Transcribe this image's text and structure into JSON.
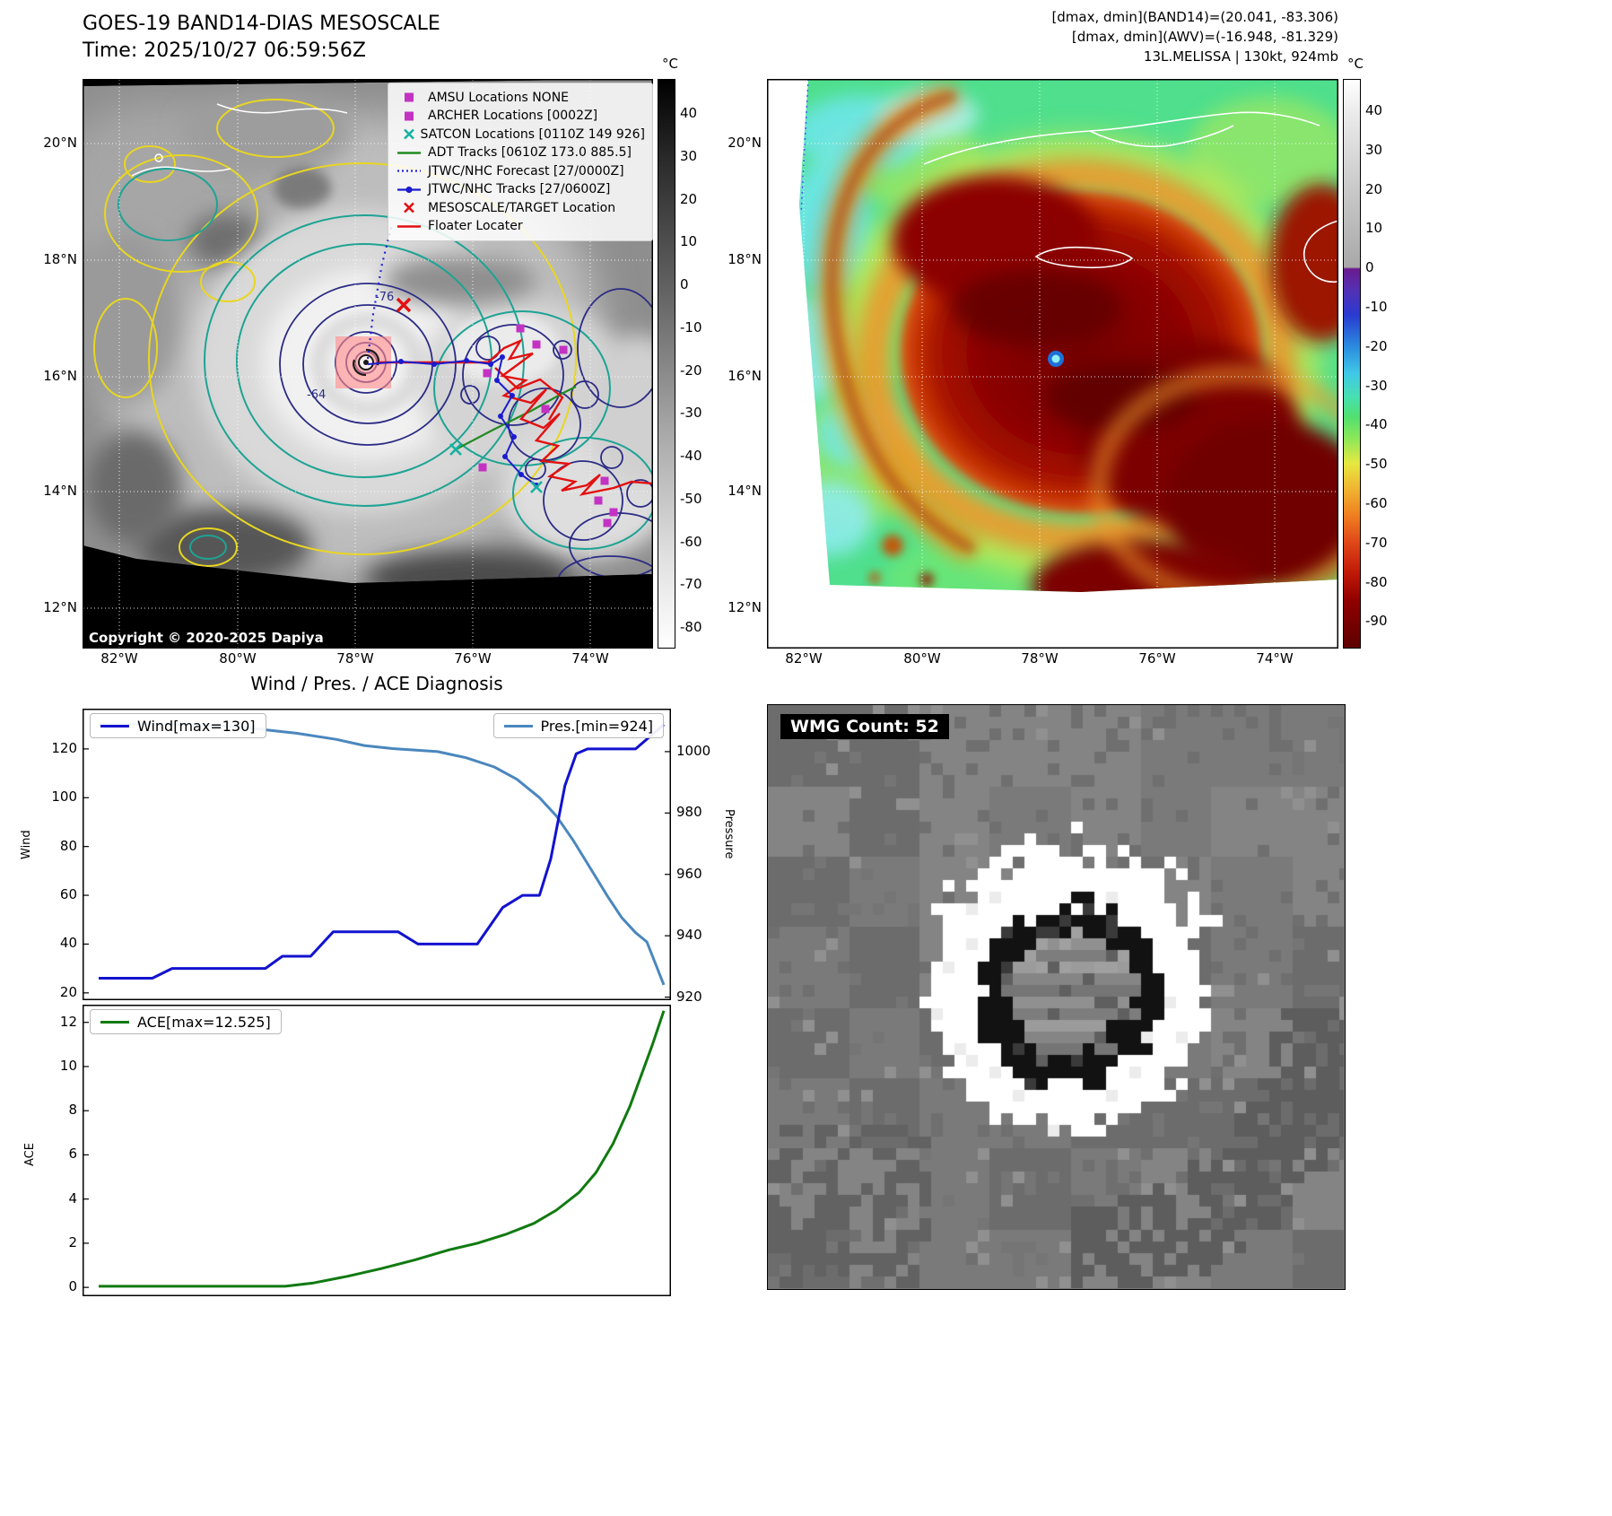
{
  "band14": {
    "title": "GOES-19 BAND14-DIAS MESOSCALE",
    "time_line": "Time: 2025/10/27 06:59:56Z",
    "copyright": "Copyright © 2020-2025 Dapiya",
    "contour_label_inner": "-76",
    "contour_label_outer": "-64",
    "legend_items": [
      {
        "label": "AMSU Locations NONE",
        "marker": "square",
        "color": "#c332c3"
      },
      {
        "label": "ARCHER Locations [0002Z]",
        "marker": "square",
        "color": "#c332c3"
      },
      {
        "label": "SATCON Locations [0110Z 149 926]",
        "marker": "x",
        "color": "#15b2a2"
      },
      {
        "label": "ADT Tracks [0610Z 173.0 885.5]",
        "marker": "line",
        "color": "#228b22"
      },
      {
        "label": "JTWC/NHC Forecast [27/0000Z]",
        "marker": "dotted-line",
        "color": "#2323d6"
      },
      {
        "label": "JTWC/NHC Tracks [27/0600Z]",
        "marker": "line-dot",
        "color": "#1b1bcf"
      },
      {
        "label": "MESOSCALE/TARGET Location",
        "marker": "x",
        "color": "#e31010"
      },
      {
        "label": "Floater Locater",
        "marker": "line",
        "color": "#e31010"
      }
    ],
    "colorbar": {
      "unit": "°C",
      "ticks": [
        "40",
        "30",
        "20",
        "10",
        "0",
        "-10",
        "-20",
        "-30",
        "-40",
        "-50",
        "-60",
        "-70",
        "-80"
      ]
    },
    "lat_ticks": [
      "20°N",
      "18°N",
      "16°N",
      "14°N",
      "12°N"
    ],
    "lon_ticks": [
      "82°W",
      "80°W",
      "78°W",
      "76°W",
      "74°W"
    ]
  },
  "awv": {
    "header_line1": "[dmax, dmin](BAND14)=(20.041, -83.306)",
    "header_line2": "[dmax, dmin](AWV)=(-16.948, -81.329)",
    "header_line3": "13L.MELISSA | 130kt, 924mb",
    "colorbar": {
      "unit": "°C",
      "ticks": [
        "40",
        "30",
        "20",
        "10",
        "0",
        "-10",
        "-20",
        "-30",
        "-40",
        "-50",
        "-60",
        "-70",
        "-80",
        "-90"
      ]
    },
    "lat_ticks": [
      "20°N",
      "18°N",
      "16°N",
      "14°N",
      "12°N"
    ],
    "lon_ticks": [
      "82°W",
      "80°W",
      "78°W",
      "76°W",
      "74°W"
    ]
  },
  "diagnosis": {
    "title": "Wind / Pres. / ACE Diagnosis",
    "wind_legend": "Wind[max=130]",
    "pres_legend": "Pres.[min=924]",
    "ace_legend": "ACE[max=12.525]",
    "wind_axis_label": "Wind",
    "pressure_axis_label": "Pressure",
    "ace_axis_label": "ACE",
    "wind_ticks": [
      "20",
      "40",
      "60",
      "80",
      "100",
      "120"
    ],
    "pressure_ticks": [
      "920",
      "940",
      "960",
      "980",
      "1000"
    ],
    "ace_ticks": [
      "0",
      "2",
      "4",
      "6",
      "8",
      "10",
      "12"
    ]
  },
  "wmg": {
    "label": "WMG Count: 52"
  },
  "chart_data": [
    {
      "type": "line",
      "title": "Wind / Pres. / ACE Diagnosis",
      "x_range": [
        0,
        1
      ],
      "grid": false,
      "legend_position": "top",
      "series": [
        {
          "name": "Wind[max=130]",
          "axis": "left",
          "ylabel": "Wind",
          "color": "#1212cf",
          "ylim": [
            17,
            136.5
          ],
          "points": [
            [
              0,
              26
            ],
            [
              0.095,
              26
            ],
            [
              0.13,
              30
            ],
            [
              0.295,
              30
            ],
            [
              0.325,
              35
            ],
            [
              0.375,
              35
            ],
            [
              0.415,
              45
            ],
            [
              0.53,
              45
            ],
            [
              0.565,
              40
            ],
            [
              0.67,
              40
            ],
            [
              0.715,
              55
            ],
            [
              0.75,
              60
            ],
            [
              0.78,
              60
            ],
            [
              0.8,
              75
            ],
            [
              0.825,
              105
            ],
            [
              0.845,
              118
            ],
            [
              0.865,
              120
            ],
            [
              0.95,
              120
            ],
            [
              1,
              130
            ]
          ]
        },
        {
          "name": "Pres.[min=924]",
          "axis": "right",
          "ylabel": "Pressure",
          "color": "#4a87be",
          "ylim": [
            919,
            1014
          ],
          "points": [
            [
              0,
              1009
            ],
            [
              0.15,
              1009
            ],
            [
              0.25,
              1008
            ],
            [
              0.35,
              1006
            ],
            [
              0.42,
              1004
            ],
            [
              0.47,
              1002
            ],
            [
              0.52,
              1001
            ],
            [
              0.6,
              1000
            ],
            [
              0.65,
              998
            ],
            [
              0.7,
              995
            ],
            [
              0.74,
              991
            ],
            [
              0.78,
              985
            ],
            [
              0.81,
              979
            ],
            [
              0.84,
              971
            ],
            [
              0.87,
              962
            ],
            [
              0.9,
              953
            ],
            [
              0.925,
              946
            ],
            [
              0.95,
              941
            ],
            [
              0.97,
              938
            ],
            [
              1,
              924
            ]
          ]
        }
      ]
    },
    {
      "type": "line",
      "x_range": [
        0,
        1
      ],
      "grid": false,
      "legend_position": "top-left",
      "series": [
        {
          "name": "ACE[max=12.525]",
          "axis": "left",
          "ylabel": "ACE",
          "color": "#107a10",
          "ylim": [
            -0.4,
            12.8
          ],
          "points": [
            [
              0,
              0.05
            ],
            [
              0.33,
              0.05
            ],
            [
              0.38,
              0.2
            ],
            [
              0.44,
              0.5
            ],
            [
              0.5,
              0.85
            ],
            [
              0.56,
              1.25
            ],
            [
              0.62,
              1.7
            ],
            [
              0.67,
              2.0
            ],
            [
              0.72,
              2.4
            ],
            [
              0.77,
              2.9
            ],
            [
              0.81,
              3.5
            ],
            [
              0.85,
              4.3
            ],
            [
              0.88,
              5.2
            ],
            [
              0.91,
              6.5
            ],
            [
              0.94,
              8.2
            ],
            [
              0.96,
              9.6
            ],
            [
              0.98,
              11.0
            ],
            [
              1,
              12.525
            ]
          ]
        }
      ]
    }
  ]
}
